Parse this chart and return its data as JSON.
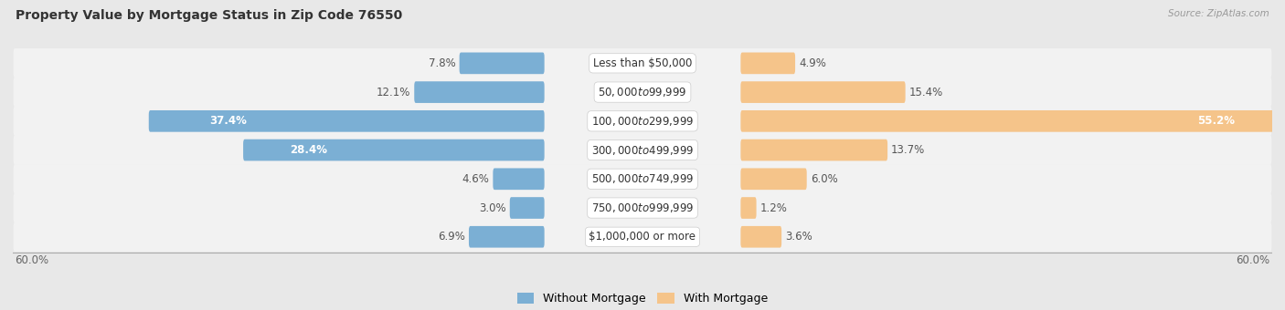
{
  "title": "Property Value by Mortgage Status in Zip Code 76550",
  "source": "Source: ZipAtlas.com",
  "categories": [
    "Less than $50,000",
    "$50,000 to $99,999",
    "$100,000 to $299,999",
    "$300,000 to $499,999",
    "$500,000 to $749,999",
    "$750,000 to $999,999",
    "$1,000,000 or more"
  ],
  "without_mortgage": [
    7.8,
    12.1,
    37.4,
    28.4,
    4.6,
    3.0,
    6.9
  ],
  "with_mortgage": [
    4.9,
    15.4,
    55.2,
    13.7,
    6.0,
    1.2,
    3.6
  ],
  "color_without": "#7bafd4",
  "color_with": "#f5c48a",
  "color_without_dark": "#5a9bc4",
  "color_with_dark": "#e8a060",
  "max_val": 60.0,
  "bg_color": "#e8e8e8",
  "row_bg_color": "#f2f2f2",
  "bar_bg_color": "#dcdcdc",
  "title_fontsize": 10,
  "cat_fontsize": 8.5,
  "val_fontsize": 8.5,
  "legend_fontsize": 9,
  "source_fontsize": 7.5,
  "axis_label": "60.0%"
}
